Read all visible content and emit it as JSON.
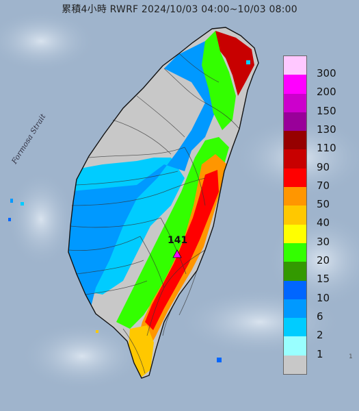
{
  "title": "累積4小時 RWRF 2024/10/03 04:00~10/03 08:00",
  "strait_label": "Formosa Strait",
  "max_value_label": "141",
  "corner_note": "1",
  "legend": [
    {
      "label": "300",
      "color": "#ffc8ff"
    },
    {
      "label": "200",
      "color": "#ff00ff"
    },
    {
      "label": "150",
      "color": "#cc00cc"
    },
    {
      "label": "130",
      "color": "#990099"
    },
    {
      "label": "110",
      "color": "#960000"
    },
    {
      "label": "90",
      "color": "#c80000"
    },
    {
      "label": "70",
      "color": "#ff0000"
    },
    {
      "label": "50",
      "color": "#ff9600"
    },
    {
      "label": "40",
      "color": "#ffc800"
    },
    {
      "label": "30",
      "color": "#ffff00"
    },
    {
      "label": "20",
      "color": "#33ff00"
    },
    {
      "label": "15",
      "color": "#339900"
    },
    {
      "label": "10",
      "color": "#0066ff"
    },
    {
      "label": "6",
      "color": "#0099ff"
    },
    {
      "label": "2",
      "color": "#00ccff"
    },
    {
      "label": "1",
      "color": "#99ffff"
    },
    {
      "label": "",
      "color": "#c8c8c8"
    }
  ],
  "colors": {
    "sea": "#9fb4cc",
    "no_rain": "#c8c8c8",
    "marker": "#ff00ff"
  },
  "icons": {
    "max_marker": "triangle-icon"
  }
}
